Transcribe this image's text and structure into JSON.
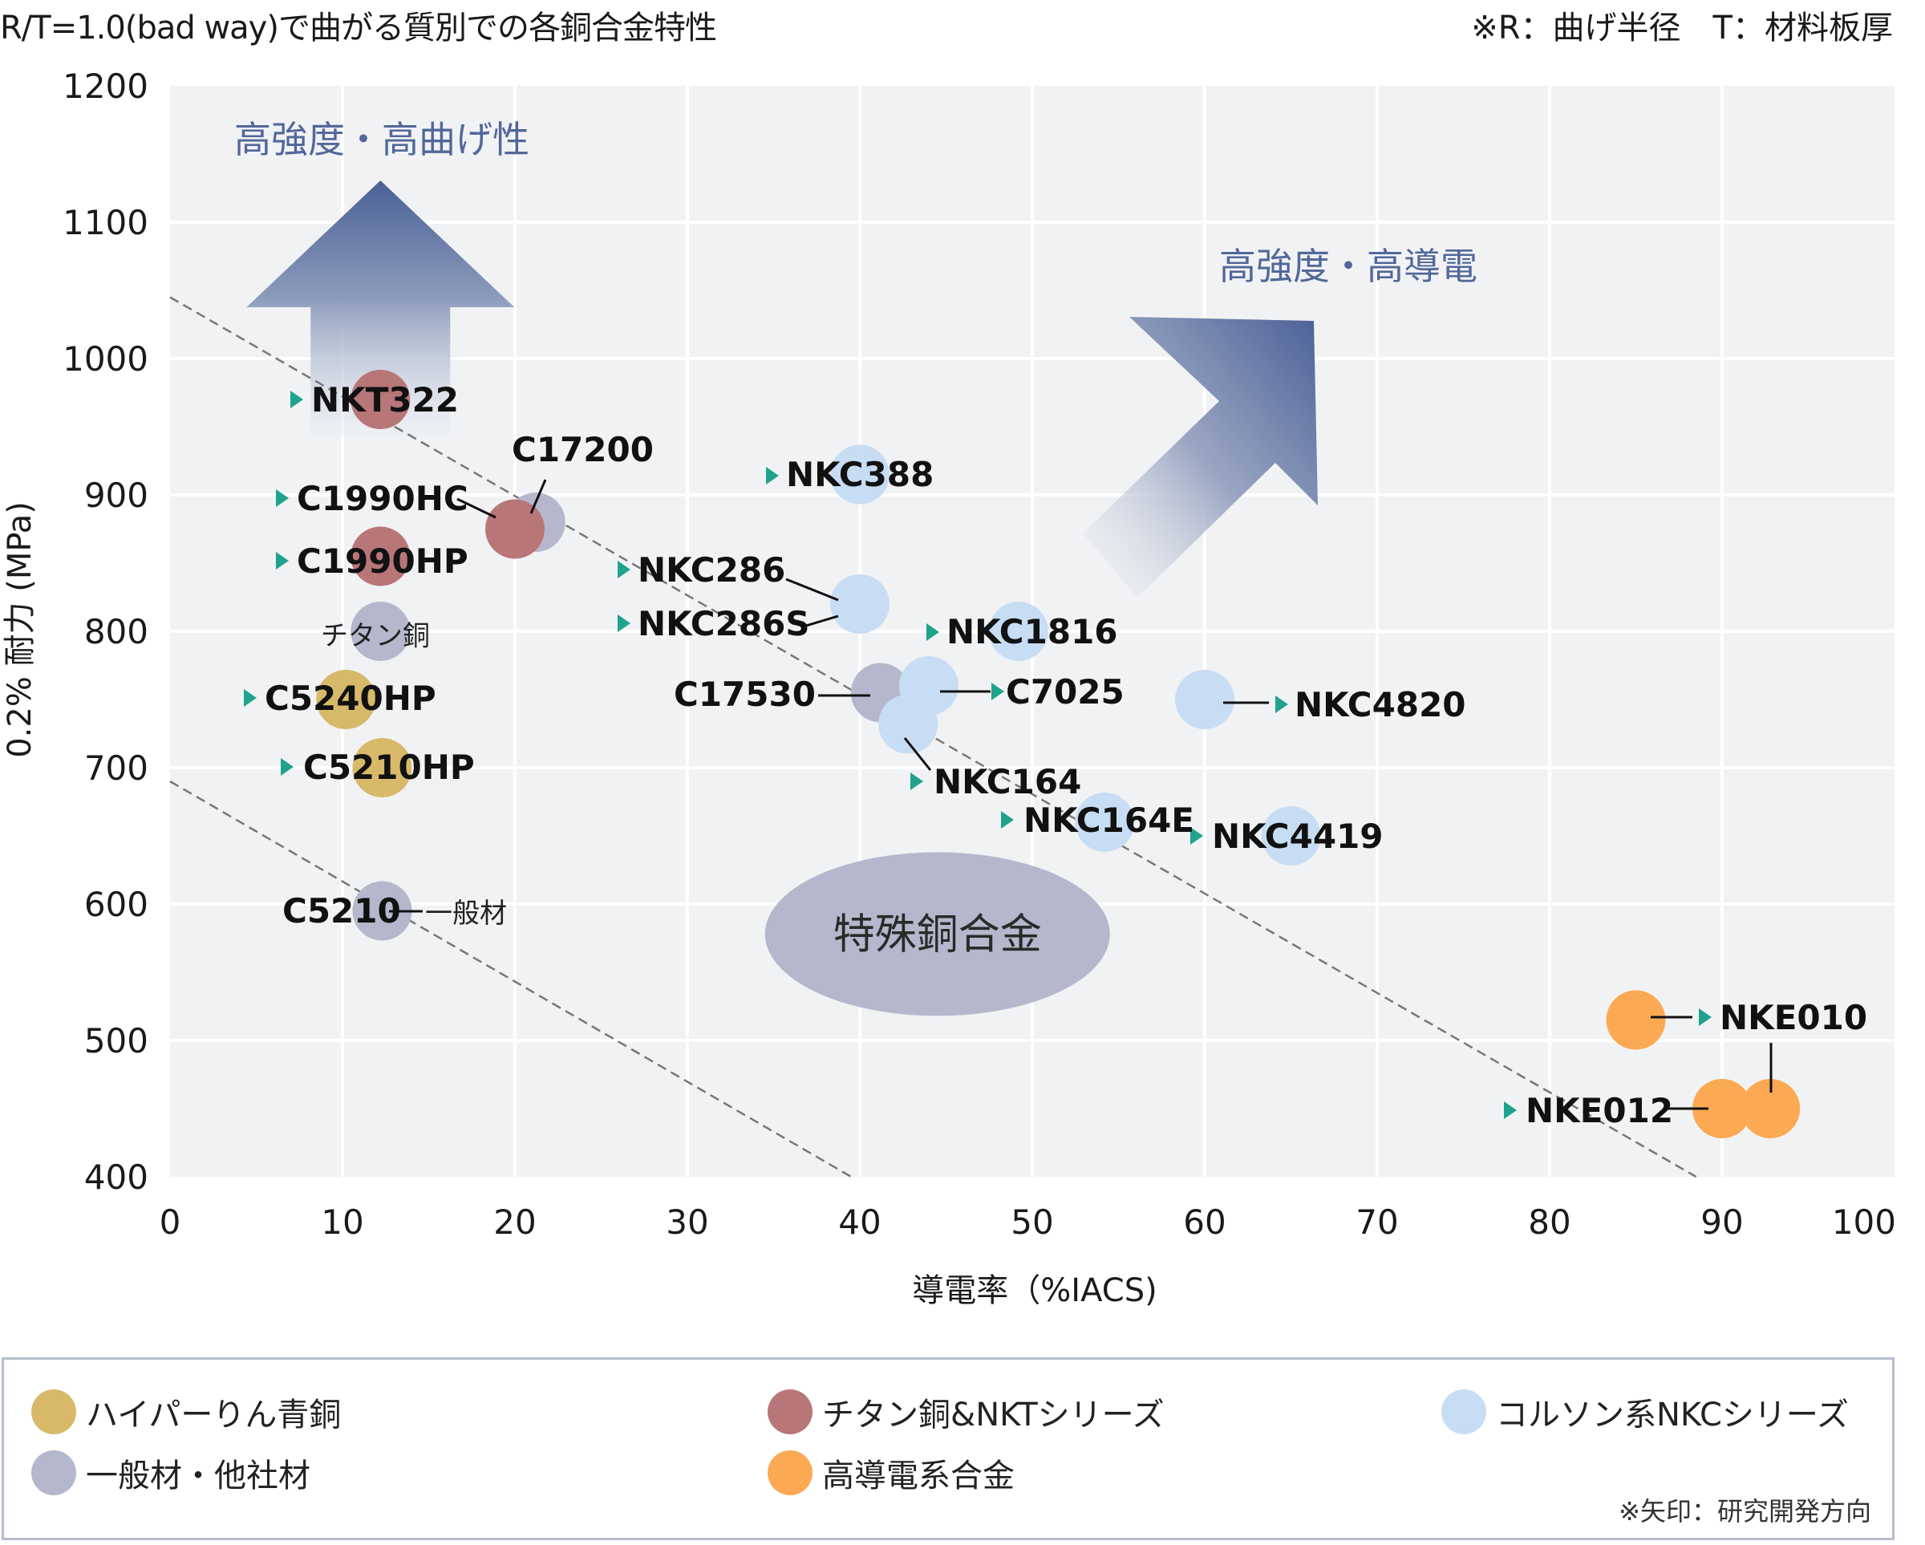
{
  "header": {
    "title": "R/T=1.0(bad way)で曲がる質別での各銅合金特性",
    "note": "※R：曲げ半径　T：材料板厚"
  },
  "chart_data": {
    "type": "scatter",
    "title": "R/T=1.0(bad way)で曲がる質別での各銅合金特性",
    "xlabel": "導電率（%IACS)",
    "ylabel": "0.2% 耐力 (MPa)",
    "xlim": [
      0,
      100
    ],
    "ylim": [
      400,
      1200
    ],
    "xticks": [
      0,
      10,
      20,
      30,
      40,
      50,
      60,
      70,
      80,
      90,
      100
    ],
    "yticks": [
      400,
      500,
      600,
      700,
      800,
      900,
      1000,
      1100,
      1200
    ],
    "grid": true,
    "legend_position": "bottom",
    "categories": {
      "hyper": {
        "label": "ハイパーりん青銅",
        "color": "#d8b96a"
      },
      "titanium": {
        "label": "チタン銅&NKTシリーズ",
        "color": "#b87679"
      },
      "corson": {
        "label": "コルソン系NKCシリーズ",
        "color": "#c7ddf4"
      },
      "general": {
        "label": "一般材・他社材",
        "color": "#b5b8cc"
      },
      "highcond": {
        "label": "高導電系合金",
        "color": "#fba953"
      }
    },
    "points": [
      {
        "name": "C17200",
        "x": 21.2,
        "y": 880,
        "category": "general",
        "marker": false
      },
      {
        "name": "NKT322",
        "x": 12.2,
        "y": 970,
        "category": "titanium",
        "marker": true
      },
      {
        "name": "C1990HC",
        "x": 20,
        "y": 875,
        "category": "titanium",
        "marker": true
      },
      {
        "name": "C1990HP",
        "x": 12.2,
        "y": 855,
        "category": "titanium",
        "marker": true
      },
      {
        "name": "チタン銅",
        "x": 12.2,
        "y": 800,
        "category": "general",
        "marker": false
      },
      {
        "name": "C5240HP",
        "x": 10.2,
        "y": 750,
        "category": "hyper",
        "marker": true
      },
      {
        "name": "C5210HP",
        "x": 12.3,
        "y": 700,
        "category": "hyper",
        "marker": true
      },
      {
        "name": "C5210",
        "x": 12.3,
        "y": 595,
        "category": "general",
        "marker": false,
        "suffix": "一般材"
      },
      {
        "name": "NKC388",
        "x": 40,
        "y": 915,
        "category": "corson",
        "marker": true
      },
      {
        "name": "NKC286 / NKC286S",
        "x": 40,
        "y": 820,
        "category": "corson",
        "marker": true
      },
      {
        "name": "NKC1816",
        "x": 49.2,
        "y": 800,
        "category": "corson",
        "marker": true
      },
      {
        "name": "C17530",
        "x": 41.2,
        "y": 755,
        "category": "general",
        "marker": false
      },
      {
        "name": "NKC164",
        "x": 42.8,
        "y": 732,
        "category": "corson",
        "marker": true
      },
      {
        "name": "C7025",
        "x": 44,
        "y": 760,
        "category": "corson",
        "marker": true
      },
      {
        "name": "NKC164E",
        "x": 54.2,
        "y": 660,
        "category": "corson",
        "marker": true
      },
      {
        "name": "NKC4820",
        "x": 60,
        "y": 750,
        "category": "corson",
        "marker": true
      },
      {
        "name": "NKC4419",
        "x": 65,
        "y": 650,
        "category": "corson",
        "marker": true
      },
      {
        "name": "NKE010",
        "x": 85,
        "y": 515,
        "category": "highcond",
        "marker": true
      },
      {
        "name": "NKE012",
        "x": 90,
        "y": 450,
        "category": "highcond",
        "marker": true
      },
      {
        "name": "NKE010",
        "x": 92.8,
        "y": 450,
        "category": "highcond",
        "marker": false
      }
    ],
    "reference_lines": [
      {
        "style": "dashed",
        "from": [
          0,
          1045
        ],
        "to": [
          88.5,
          400
        ]
      },
      {
        "style": "dashed",
        "from": [
          0,
          690
        ],
        "to": [
          39.5,
          400
        ]
      }
    ],
    "annotations": {
      "up_arrow": "高強度・高曲げ性",
      "diag_arrow": "高強度・高導電",
      "ellipse": "特殊銅合金"
    },
    "labels": {
      "NKT322": "NKT322",
      "C1990HC": "C1990HC",
      "C17200": "C17200",
      "C1990HP": "C1990HP",
      "titan": "チタン銅",
      "C5240HP": "C5240HP",
      "C5210HP": "C5210HP",
      "C5210": "C5210",
      "general_suffix": "一般材",
      "NKC388": "NKC388",
      "NKC286": "NKC286",
      "NKC286S": "NKC286S",
      "NKC1816": "NKC1816",
      "C17530": "C17530",
      "C7025": "C7025",
      "NKC4820": "NKC4820",
      "NKC164": "NKC164",
      "NKC164E": "NKC164E",
      "NKC4419": "NKC4419",
      "NKE010": "NKE010",
      "NKE012": "NKE012"
    },
    "colors": {
      "plot_bg": "#f1f2f4",
      "grid": "#ffffff",
      "marker": "#20a38c",
      "arrow_dark": "#4b6197",
      "ellipse": "#b5b8cc"
    }
  },
  "legend": {
    "items": [
      {
        "label": "ハイパーりん青銅",
        "color": "#d8b96a"
      },
      {
        "label": "チタン銅&NKTシリーズ",
        "color": "#b87679"
      },
      {
        "label": "コルソン系NKCシリーズ",
        "color": "#c7ddf4"
      },
      {
        "label": "一般材・他社材",
        "color": "#b5b8cc"
      },
      {
        "label": "高導電系合金",
        "color": "#fba953"
      }
    ],
    "note": "※矢印：研究開発方向"
  }
}
